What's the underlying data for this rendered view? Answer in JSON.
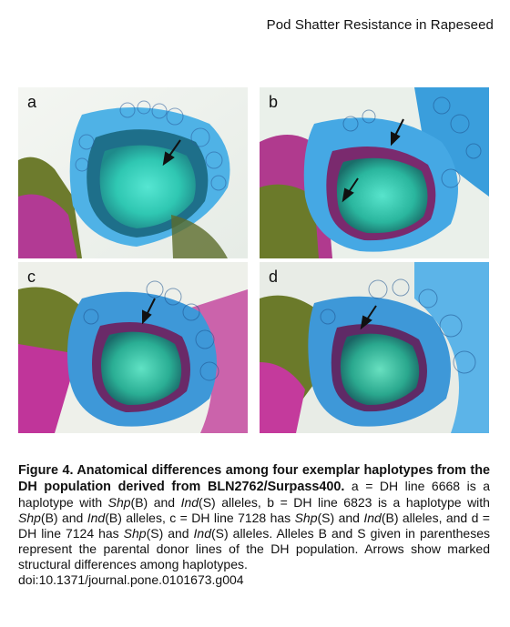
{
  "header": {
    "running_title": "Pod Shatter Resistance in Rapeseed"
  },
  "figure": {
    "panels": [
      {
        "label": "a",
        "description_color": "#2fd0b4"
      },
      {
        "label": "b",
        "description_color": "#2fd0b4"
      },
      {
        "label": "c",
        "description_color": "#2fd0b4"
      },
      {
        "label": "d",
        "description_color": "#2fd0b4"
      }
    ],
    "colors": {
      "tissue_cyan": "#36d4c4",
      "tissue_blue": "#3aa0e0",
      "tissue_magenta": "#c0359a",
      "tissue_olive": "#6b7a2a",
      "background": "#eef0ec"
    }
  },
  "caption": {
    "title": "Figure 4. Anatomical differences among four exemplar haplotypes from the DH population derived from BLN2762/Surpass400.",
    "p1": " a = DH line 6668 is a haplotype with ",
    "shp": "Shp",
    "b_allele": "(B) and ",
    "ind": "Ind",
    "s_allele": "(S) alleles,",
    "p2": " b = DH line 6823 is a haplotype with ",
    "shp2": "Shp",
    "p2b": "(B) and ",
    "ind2": "Ind",
    "p2c": "(B) alleles, c = DH line 7128 has ",
    "shp3": "Shp",
    "p3b": "(S) and ",
    "ind3": "Ind",
    "p3c": "(B) alleles, and d = DH line 7124 has ",
    "shp4": "Shp",
    "p4b": "(S) and ",
    "ind4": "Ind",
    "p4c": "(S) alleles. Alleles B and S given in parentheses represent the parental donor lines of the DH population. Arrows show marked structural differences among haplotypes.",
    "doi": "doi:10.1371/journal.pone.0101673.g004"
  }
}
